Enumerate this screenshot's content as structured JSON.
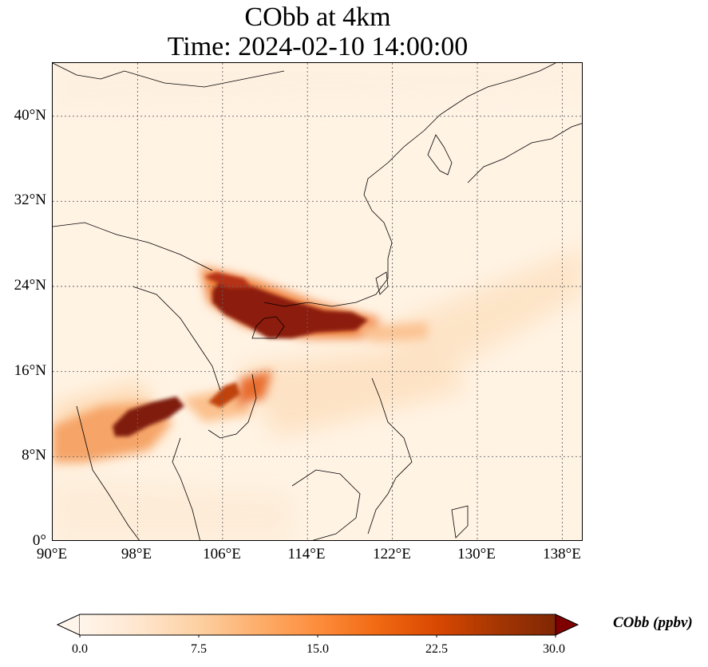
{
  "title": {
    "line1": "CObb at 4km",
    "line2": "Time: 2024-02-10 14:00:00"
  },
  "map": {
    "lon_range": [
      90,
      140
    ],
    "lat_range": [
      0,
      45
    ],
    "x_ticks": [
      "90°E",
      "98°E",
      "106°E",
      "114°E",
      "122°E",
      "130°E",
      "138°E"
    ],
    "y_ticks": [
      "0°",
      "8°N",
      "16°N",
      "24°N",
      "32°N",
      "40°N"
    ],
    "gridlines": true
  },
  "colorbar": {
    "title": "CObb (ppbv)",
    "ticks": [
      "0.0",
      "7.5",
      "15.0",
      "22.5",
      "30.0"
    ],
    "range": [
      0,
      30
    ],
    "extend": "both",
    "colormap": [
      "#fff5eb",
      "#fee6ce",
      "#fdd0a2",
      "#fdae6b",
      "#fd8d3c",
      "#f16913",
      "#d94801",
      "#a63603",
      "#7f2704"
    ]
  }
}
